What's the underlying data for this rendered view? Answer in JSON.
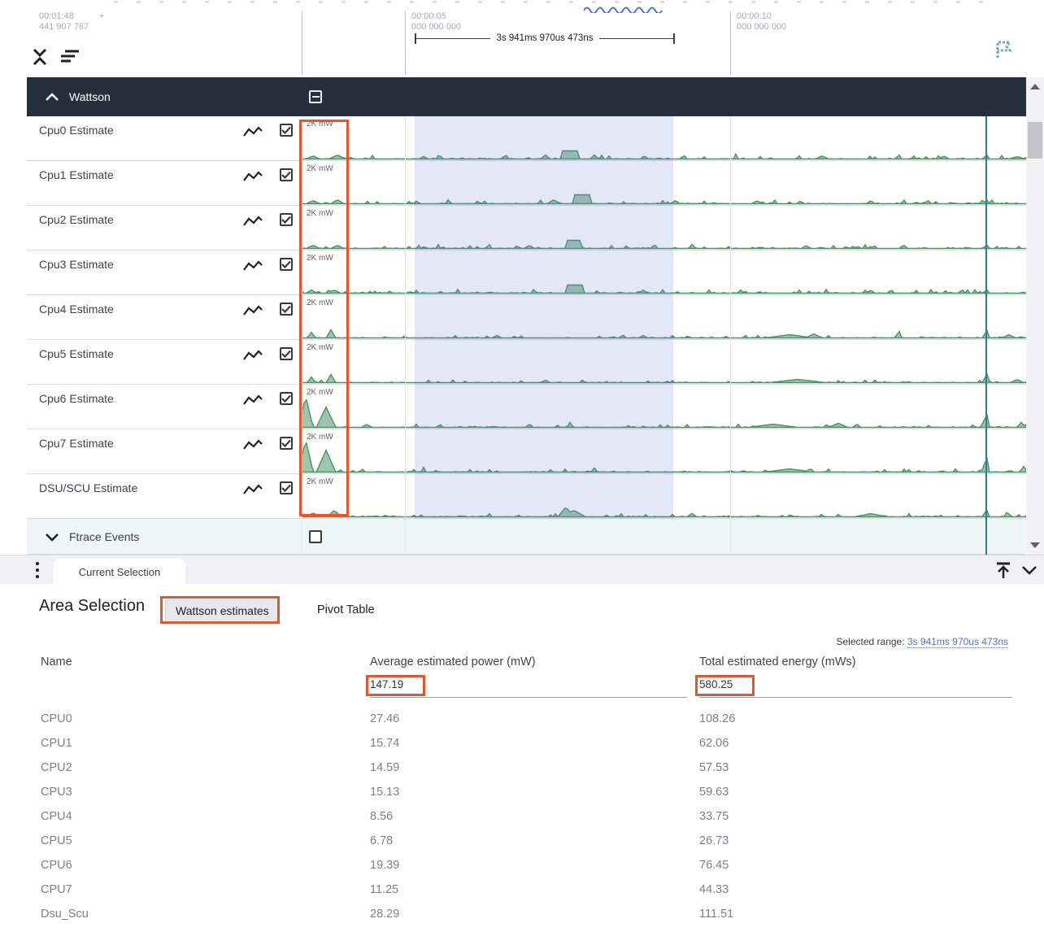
{
  "colors": {
    "header-bg": "#262f3c",
    "trace-stroke": "#4d9164",
    "trace-fill": "#7db392",
    "selection": "#6a7ad2",
    "annotation": "#e8542e",
    "marker": "#2e7d8f",
    "link": "#5570c0",
    "ftrace-bg": "#edf5f5",
    "tabstrip-bg": "#eff1f3"
  },
  "timeline": {
    "start": {
      "time": "00:01:48",
      "plus": "+",
      "frac": "441 907 767"
    },
    "ticks": [
      {
        "time": "00:00:05",
        "frac": "000 000 000"
      },
      {
        "time": "00:00:10",
        "frac": "000 000 000"
      }
    ],
    "measurement": "3s 941ms 970us 473ns"
  },
  "tracks_panel": {
    "group_title": "Wattson",
    "scale_label": "2K mW",
    "collapsed_group": "Ftrace Events",
    "tracks": [
      {
        "name": "Cpu0 Estimate",
        "wave": {
          "seed": 11,
          "noise": 3,
          "spikes": [
            [
              14,
              4,
              8
            ],
            [
              44,
              5,
              10
            ],
            [
              150,
              3,
              6
            ],
            [
              250,
              4,
              5
            ],
            [
              300,
              5,
              6
            ],
            [
              330,
              10,
              12,
              1
            ],
            [
              360,
              5,
              5
            ],
            [
              470,
              5,
              4
            ],
            [
              534,
              6,
              3
            ],
            [
              640,
              4,
              8
            ],
            [
              734,
              7,
              3
            ],
            [
              790,
              4,
              6
            ],
            [
              842,
              7,
              3
            ],
            [
              880,
              3,
              10
            ]
          ]
        }
      },
      {
        "name": "Cpu1 Estimate",
        "wave": {
          "seed": 22,
          "noise": 3,
          "spikes": [
            [
              14,
              4,
              8
            ],
            [
              44,
              5,
              8
            ],
            [
              310,
              5,
              8
            ],
            [
              345,
              11,
              10,
              1
            ],
            [
              460,
              5,
              4
            ],
            [
              560,
              4,
              6
            ],
            [
              700,
              4,
              5
            ],
            [
              770,
              5,
              4
            ],
            [
              842,
              6,
              3
            ]
          ]
        }
      },
      {
        "name": "Cpu2 Estimate",
        "wave": {
          "seed": 33,
          "noise": 3,
          "spikes": [
            [
              14,
              4,
              8
            ],
            [
              44,
              4,
              8
            ],
            [
              280,
              4,
              6
            ],
            [
              335,
              10,
              10,
              1
            ],
            [
              480,
              5,
              4
            ],
            [
              620,
              4,
              5
            ],
            [
              740,
              5,
              4
            ],
            [
              842,
              6,
              3
            ]
          ]
        }
      },
      {
        "name": "Cpu3 Estimate",
        "wave": {
          "seed": 44,
          "noise": 3,
          "spikes": [
            [
              12,
              4,
              6
            ],
            [
              40,
              4,
              8
            ],
            [
              335,
              10,
              11,
              1
            ],
            [
              420,
              4,
              5
            ],
            [
              540,
              4,
              4
            ],
            [
              700,
              4,
              5
            ],
            [
              842,
              6,
              3
            ]
          ]
        }
      },
      {
        "name": "Cpu4 Estimate",
        "wave": {
          "seed": 55,
          "noise": 2,
          "spikes": [
            [
              12,
              7,
              5
            ],
            [
              36,
              10,
              6
            ],
            [
              240,
              3,
              6
            ],
            [
              420,
              3,
              5
            ],
            [
              600,
              4,
              30
            ],
            [
              630,
              5,
              10
            ],
            [
              734,
              12,
              3
            ],
            [
              842,
              13,
              3
            ],
            [
              870,
              4,
              8
            ]
          ]
        }
      },
      {
        "name": "Cpu5 Estimate",
        "wave": {
          "seed": 66,
          "noise": 2,
          "spikes": [
            [
              12,
              7,
              5
            ],
            [
              36,
              10,
              6
            ],
            [
              300,
              3,
              6
            ],
            [
              610,
              4,
              35
            ],
            [
              842,
              16,
              3
            ],
            [
              880,
              4,
              8
            ]
          ]
        }
      },
      {
        "name": "Cpu6 Estimate",
        "wave": {
          "seed": 77,
          "noise": 2.5,
          "spikes": [
            [
              5,
              38,
              9
            ],
            [
              30,
              25,
              12
            ],
            [
              80,
              4,
              6
            ],
            [
              170,
              5,
              3
            ],
            [
              330,
              6,
              4
            ],
            [
              580,
              4,
              30
            ],
            [
              660,
              5,
              12
            ],
            [
              842,
              20,
              4
            ],
            [
              885,
              6,
              5
            ]
          ]
        }
      },
      {
        "name": "Cpu7 Estimate",
        "wave": {
          "seed": 88,
          "noise": 2.5,
          "spikes": [
            [
              5,
              40,
              9
            ],
            [
              30,
              27,
              12
            ],
            [
              150,
              6,
              3
            ],
            [
              360,
              5,
              4
            ],
            [
              600,
              4,
              30
            ],
            [
              842,
              22,
              4
            ],
            [
              888,
              7,
              5
            ]
          ]
        }
      },
      {
        "name": "DSU/SCU Estimate",
        "wave": {
          "seed": 99,
          "noise": 2.5,
          "spikes": [
            [
              14,
              5,
              8
            ],
            [
              40,
              8,
              9
            ],
            [
              325,
              12,
              10
            ],
            [
              335,
              8,
              14
            ],
            [
              480,
              4,
              6
            ],
            [
              700,
              4,
              20
            ],
            [
              842,
              10,
              4
            ],
            [
              868,
              7,
              4
            ],
            [
              895,
              5,
              5
            ]
          ]
        }
      }
    ]
  },
  "tabs": {
    "current_selection": "Current Selection"
  },
  "details": {
    "title": "Area Selection",
    "wattson_button": "Wattson estimates",
    "pivot_button": "Pivot Table",
    "selected_range_label": "Selected range:",
    "selected_range_value": "3s 941ms 970us 473ns",
    "table": {
      "columns": [
        "Name",
        "Average estimated power (mW)",
        "Total estimated energy (mWs)"
      ],
      "totals": {
        "power": "147.19",
        "energy": "580.25"
      },
      "rows": [
        {
          "name": "CPU0",
          "power": "27.46",
          "energy": "108.26"
        },
        {
          "name": "CPU1",
          "power": "15.74",
          "energy": "62.06"
        },
        {
          "name": "CPU2",
          "power": "14.59",
          "energy": "57.53"
        },
        {
          "name": "CPU3",
          "power": "15.13",
          "energy": "59.63"
        },
        {
          "name": "CPU4",
          "power": "8.56",
          "energy": "33.75"
        },
        {
          "name": "CPU5",
          "power": "6.78",
          "energy": "26.73"
        },
        {
          "name": "CPU6",
          "power": "19.39",
          "energy": "76.45"
        },
        {
          "name": "CPU7",
          "power": "11.25",
          "energy": "44.33"
        },
        {
          "name": "Dsu_Scu",
          "power": "28.29",
          "energy": "111.51"
        }
      ]
    }
  }
}
